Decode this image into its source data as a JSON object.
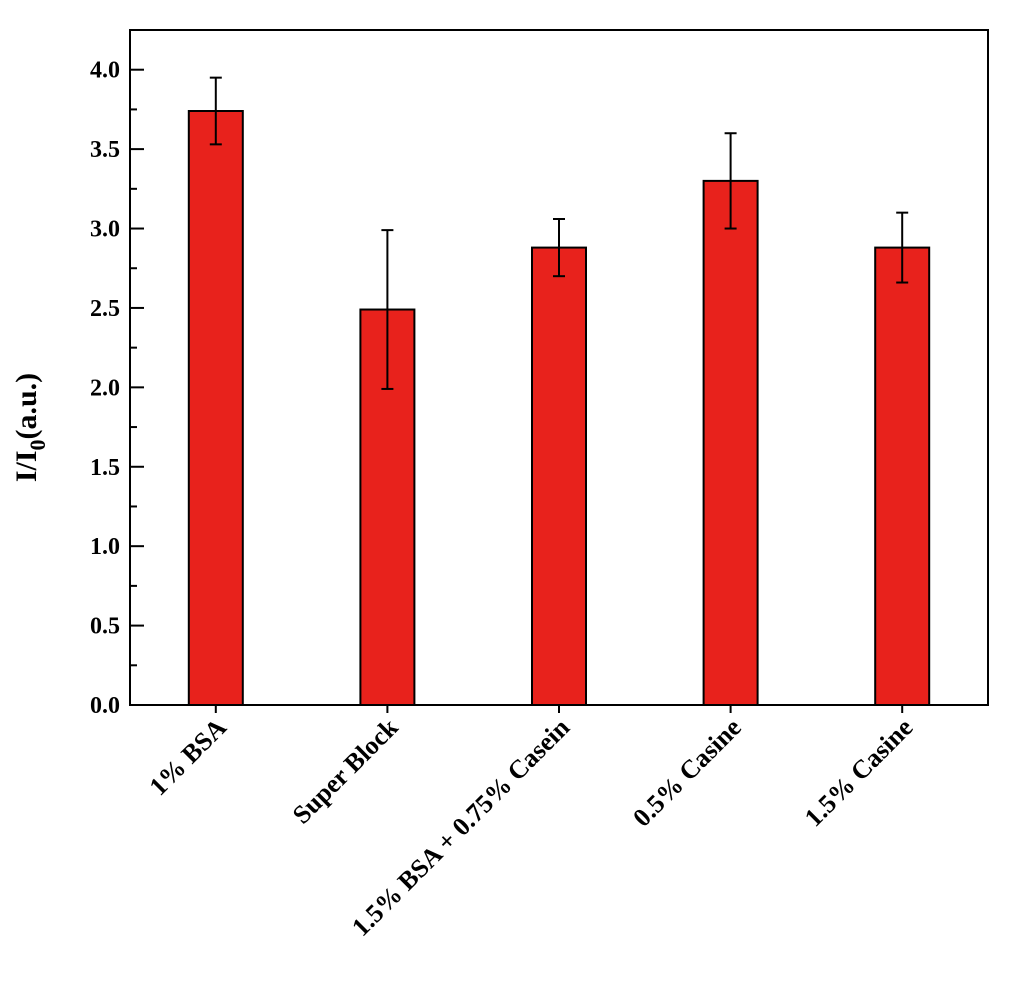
{
  "chart_data": {
    "type": "bar",
    "categories": [
      "1% BSA",
      "Super Block",
      "1.5% BSA + 0.75% Casein",
      "0.5% Casine",
      "1.5% Casine"
    ],
    "values": [
      3.74,
      2.49,
      2.88,
      3.3,
      2.88
    ],
    "errors": [
      0.21,
      0.5,
      0.18,
      0.3,
      0.22
    ],
    "ylabel": {
      "main": "I/I",
      "sub": "0",
      "tail": "(a.u.)"
    },
    "ylim": [
      0,
      4.25
    ],
    "yticks": [
      "0.0",
      "0.5",
      "1.0",
      "1.5",
      "2.0",
      "2.5",
      "3.0",
      "3.5",
      "4.0"
    ],
    "bar_color": "#e8221c",
    "grid": false,
    "legend": "none"
  }
}
